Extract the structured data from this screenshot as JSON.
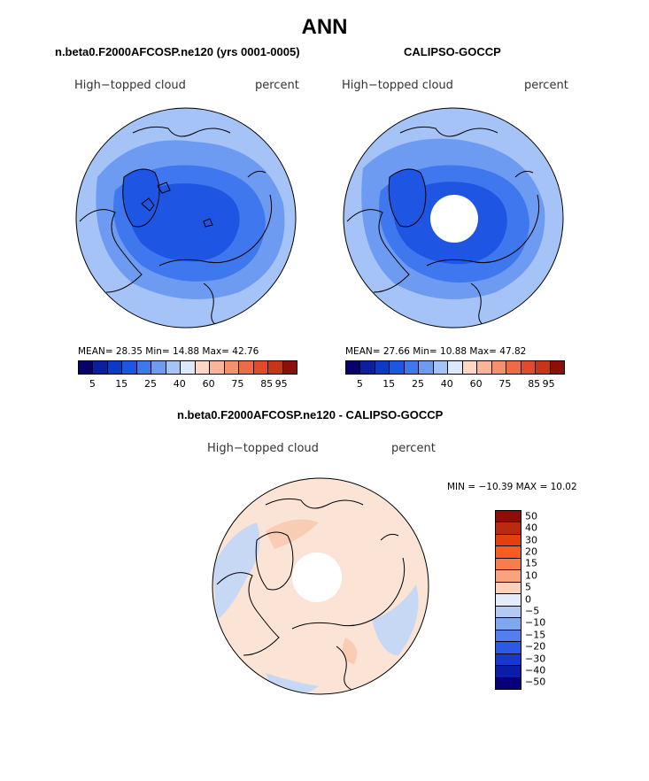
{
  "title": "ANN",
  "panels": {
    "model": {
      "title": "n.beta0.F2000AFCOSP.ne120 (yrs 0001-0005)",
      "variable": "High−topped cloud",
      "units": "percent",
      "stats": "MEAN=  28.35  Min=  14.88  Max=  42.76"
    },
    "obs": {
      "title": "CALIPSO-GOCCP",
      "variable": "High−topped cloud",
      "units": "percent",
      "stats": "MEAN=  27.66  Min=  10.88  Max=  47.82"
    },
    "diff": {
      "title": "n.beta0.F2000AFCOSP.ne120 - CALIPSO-GOCCP",
      "variable": "High−topped cloud",
      "units": "percent",
      "stats": "MIN = −10.39 MAX =  10.02"
    }
  },
  "colorbar_abs": {
    "colors": [
      "#08006b",
      "#0b1fa3",
      "#0d39c9",
      "#1f55e3",
      "#3f78ee",
      "#6e9bf2",
      "#a6c3f7",
      "#dbe9fb",
      "#fcd7c4",
      "#f9b598",
      "#f68f6e",
      "#ef6a48",
      "#e34a2c",
      "#c93318",
      "#8c0f0a"
    ],
    "ticks": [
      "5",
      "15",
      "25",
      "40",
      "60",
      "75",
      "85",
      "95"
    ]
  },
  "colorbar_diff": {
    "colors": [
      "#8b0f06",
      "#b82b0f",
      "#e43f0e",
      "#f65d22",
      "#f77e4c",
      "#f9a37e",
      "#fcd1b8",
      "#e3ecf8",
      "#b3cbf3",
      "#7da7ef",
      "#527fed",
      "#2c5ae7",
      "#1638cf",
      "#0b1da6",
      "#06007a"
    ],
    "ticks": [
      "50",
      "40",
      "30",
      "20",
      "15",
      "10",
      "5",
      "0",
      "−5",
      "−10",
      "−15",
      "−20",
      "−30",
      "−40",
      "−50"
    ]
  },
  "map_colors": {
    "deep": "#1f55e3",
    "mid": "#3f78ee",
    "light": "#6e9bf2",
    "pale": "#a6c3f7",
    "diff_base": "#fbe4d6",
    "diff_blue": "#c6d8f4",
    "diff_red": "#f8cdb4"
  }
}
